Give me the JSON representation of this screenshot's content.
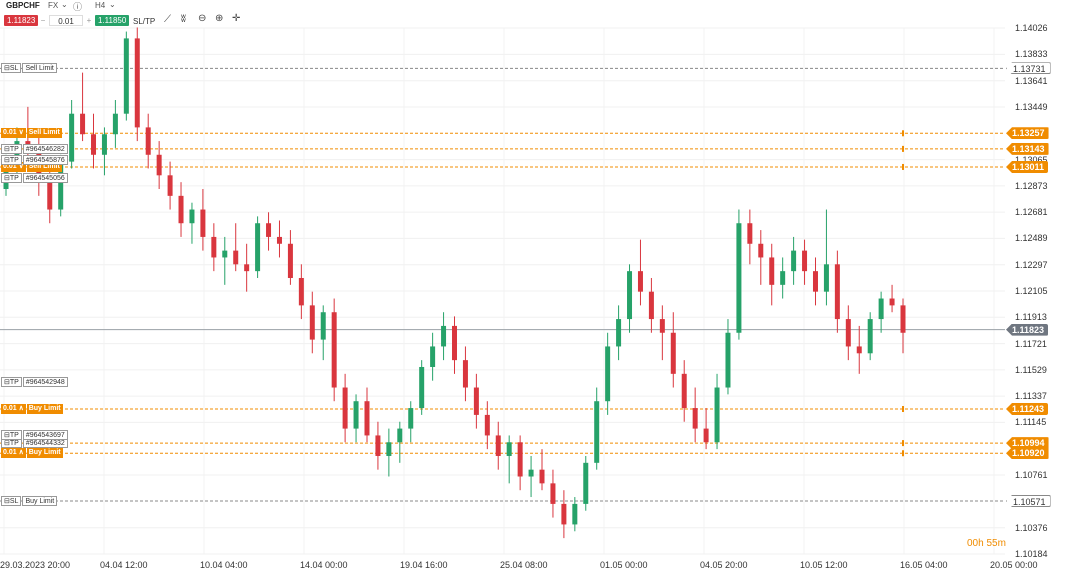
{
  "toolbar": {
    "symbol": "GBPCHF",
    "market": "FX",
    "info_icon": "info-icon",
    "timeframe": "H4",
    "sell_price": "1.11823",
    "quantity": "0.01",
    "minus": "−",
    "plus": "+",
    "buy_price": "1.11850",
    "sltp_label": "SL/TP",
    "icons": [
      "line-chart-icon",
      "indicators-icon",
      "zoom-out-icon",
      "zoom-in-icon",
      "crosshair-icon"
    ]
  },
  "price_axis": {
    "ticks": [
      "1.14026",
      "1.13833",
      "1.13641",
      "1.13449",
      "1.13065",
      "1.12873",
      "1.12681",
      "1.12489",
      "1.12297",
      "1.12105",
      "1.11913",
      "1.11721",
      "1.11529",
      "1.11337",
      "1.11145",
      "1.10761",
      "1.10376",
      "1.10184"
    ],
    "current_price": "1.11823"
  },
  "time_axis": {
    "labels": [
      "29.03.2023 20:00",
      "04.04 12:00",
      "10.04 04:00",
      "14.04 00:00",
      "19.04 16:00",
      "25.04 08:00",
      "01.05 00:00",
      "04.05 20:00",
      "10.05 12:00",
      "16.05 04:00",
      "20.05 00:00"
    ]
  },
  "order_lines": [
    {
      "kind": "sl",
      "price": "1.13731",
      "left_chips": [
        "⊟SL",
        "Sell Limit"
      ],
      "style": "gray"
    },
    {
      "kind": "order",
      "price": "1.13257",
      "left_chips": [
        "0.01 ∨",
        "Sell Limit"
      ],
      "style": "orange"
    },
    {
      "kind": "order",
      "price": "1.13143",
      "left_chips": [
        "⊟TP",
        "#964546282"
      ],
      "style": "orange"
    },
    {
      "kind": "order",
      "price": "1.13011",
      "left_chips": [
        "0.01 ∨",
        "Sell Limit"
      ],
      "style": "orange"
    },
    {
      "kind": "order",
      "price": "1.11243",
      "left_chips": [
        "0.01 ∧",
        "Buy Limit"
      ],
      "style": "orange"
    },
    {
      "kind": "order",
      "price": "1.10994",
      "left_chips": [
        "⊟TP",
        "#964544332"
      ],
      "style": "orange"
    },
    {
      "kind": "order",
      "price": "1.10920",
      "left_chips": [
        "0.01 ∧",
        "Buy Limit"
      ],
      "style": "orange"
    },
    {
      "kind": "sl",
      "price": "1.10571",
      "left_chips": [
        "⊟SL",
        "Buy Limit"
      ],
      "style": "gray"
    }
  ],
  "extra_chips": [
    {
      "price": "1.13065",
      "chips": [
        "⊟TP",
        "#964545876"
      ]
    },
    {
      "price": "1.12930",
      "chips": [
        "⊟TP",
        "#964545056"
      ]
    },
    {
      "price": "1.11440",
      "chips": [
        "⊟TP",
        "#964542948"
      ]
    },
    {
      "price": "1.11050",
      "chips": [
        "⊟TP",
        "#964543697"
      ]
    }
  ],
  "timer": {
    "hours": "00h",
    "minutes": "55m"
  },
  "colors": {
    "up": "#26a269",
    "down": "#d9363e",
    "order": "#f08c00",
    "sl": "#888888",
    "current": "#6f7680"
  },
  "chart_data": {
    "type": "candlestick",
    "x": [
      "29.03.2023 20:00",
      "04.04 12:00",
      "10.04 04:00",
      "14.04 00:00",
      "19.04 16:00",
      "25.04 08:00",
      "01.05 00:00",
      "04.05 20:00",
      "10.05 12:00",
      "16.05 04:00",
      "20.05 00:00"
    ],
    "ylim": [
      1.10184,
      1.14026
    ],
    "ohlc": [
      [
        1.1285,
        1.131,
        1.128,
        1.13
      ],
      [
        1.13,
        1.133,
        1.129,
        1.132
      ],
      [
        1.132,
        1.1345,
        1.1305,
        1.1315
      ],
      [
        1.1315,
        1.1325,
        1.128,
        1.129
      ],
      [
        1.129,
        1.13,
        1.126,
        1.127
      ],
      [
        1.127,
        1.131,
        1.1265,
        1.1305
      ],
      [
        1.1305,
        1.135,
        1.13,
        1.134
      ],
      [
        1.134,
        1.137,
        1.132,
        1.1325
      ],
      [
        1.1325,
        1.134,
        1.13,
        1.131
      ],
      [
        1.131,
        1.133,
        1.1295,
        1.1325
      ],
      [
        1.1325,
        1.135,
        1.1315,
        1.134
      ],
      [
        1.134,
        1.14,
        1.1335,
        1.1395
      ],
      [
        1.1395,
        1.1403,
        1.132,
        1.133
      ],
      [
        1.133,
        1.134,
        1.13,
        1.131
      ],
      [
        1.131,
        1.132,
        1.1285,
        1.1295
      ],
      [
        1.1295,
        1.1305,
        1.127,
        1.128
      ],
      [
        1.128,
        1.129,
        1.125,
        1.126
      ],
      [
        1.126,
        1.1275,
        1.1245,
        1.127
      ],
      [
        1.127,
        1.1285,
        1.124,
        1.125
      ],
      [
        1.125,
        1.126,
        1.1225,
        1.1235
      ],
      [
        1.1235,
        1.125,
        1.1215,
        1.124
      ],
      [
        1.124,
        1.126,
        1.1225,
        1.123
      ],
      [
        1.123,
        1.1245,
        1.121,
        1.1225
      ],
      [
        1.1225,
        1.1265,
        1.122,
        1.126
      ],
      [
        1.126,
        1.1268,
        1.124,
        1.125
      ],
      [
        1.125,
        1.1262,
        1.1235,
        1.1245
      ],
      [
        1.1245,
        1.1255,
        1.1215,
        1.122
      ],
      [
        1.122,
        1.123,
        1.119,
        1.12
      ],
      [
        1.12,
        1.121,
        1.1165,
        1.1175
      ],
      [
        1.1175,
        1.12,
        1.116,
        1.1195
      ],
      [
        1.1195,
        1.1205,
        1.113,
        1.114
      ],
      [
        1.114,
        1.115,
        1.11,
        1.111
      ],
      [
        1.111,
        1.1135,
        1.11,
        1.113
      ],
      [
        1.113,
        1.114,
        1.11,
        1.1105
      ],
      [
        1.1105,
        1.1115,
        1.108,
        1.109
      ],
      [
        1.109,
        1.111,
        1.1075,
        1.11
      ],
      [
        1.11,
        1.1115,
        1.1085,
        1.111
      ],
      [
        1.111,
        1.113,
        1.11,
        1.1125
      ],
      [
        1.1125,
        1.116,
        1.112,
        1.1155
      ],
      [
        1.1155,
        1.118,
        1.1145,
        1.117
      ],
      [
        1.117,
        1.1195,
        1.116,
        1.1185
      ],
      [
        1.1185,
        1.1192,
        1.115,
        1.116
      ],
      [
        1.116,
        1.117,
        1.113,
        1.114
      ],
      [
        1.114,
        1.115,
        1.111,
        1.112
      ],
      [
        1.112,
        1.113,
        1.1095,
        1.1105
      ],
      [
        1.1105,
        1.1115,
        1.108,
        1.109
      ],
      [
        1.109,
        1.1105,
        1.107,
        1.11
      ],
      [
        1.11,
        1.1105,
        1.1065,
        1.1075
      ],
      [
        1.1075,
        1.109,
        1.106,
        1.108
      ],
      [
        1.108,
        1.1095,
        1.1065,
        1.107
      ],
      [
        1.107,
        1.108,
        1.1045,
        1.1055
      ],
      [
        1.1055,
        1.1065,
        1.103,
        1.104
      ],
      [
        1.104,
        1.106,
        1.1035,
        1.1055
      ],
      [
        1.1055,
        1.109,
        1.105,
        1.1085
      ],
      [
        1.1085,
        1.114,
        1.108,
        1.113
      ],
      [
        1.113,
        1.118,
        1.112,
        1.117
      ],
      [
        1.117,
        1.12,
        1.116,
        1.119
      ],
      [
        1.119,
        1.123,
        1.118,
        1.1225
      ],
      [
        1.1225,
        1.1248,
        1.12,
        1.121
      ],
      [
        1.121,
        1.122,
        1.118,
        1.119
      ],
      [
        1.119,
        1.12,
        1.116,
        1.118
      ],
      [
        1.118,
        1.1195,
        1.114,
        1.115
      ],
      [
        1.115,
        1.116,
        1.1115,
        1.1125
      ],
      [
        1.1125,
        1.114,
        1.11,
        1.111
      ],
      [
        1.111,
        1.1125,
        1.1095,
        1.11
      ],
      [
        1.11,
        1.115,
        1.1095,
        1.114
      ],
      [
        1.114,
        1.119,
        1.1135,
        1.118
      ],
      [
        1.118,
        1.127,
        1.1175,
        1.126
      ],
      [
        1.126,
        1.127,
        1.123,
        1.1245
      ],
      [
        1.1245,
        1.1255,
        1.1215,
        1.1235
      ],
      [
        1.1235,
        1.1245,
        1.12,
        1.1215
      ],
      [
        1.1215,
        1.1235,
        1.1205,
        1.1225
      ],
      [
        1.1225,
        1.125,
        1.1215,
        1.124
      ],
      [
        1.124,
        1.1248,
        1.1215,
        1.1225
      ],
      [
        1.1225,
        1.1235,
        1.12,
        1.121
      ],
      [
        1.121,
        1.127,
        1.12,
        1.123
      ],
      [
        1.123,
        1.124,
        1.118,
        1.119
      ],
      [
        1.119,
        1.12,
        1.116,
        1.117
      ],
      [
        1.117,
        1.1185,
        1.115,
        1.1165
      ],
      [
        1.1165,
        1.1195,
        1.116,
        1.119
      ],
      [
        1.119,
        1.121,
        1.118,
        1.1205
      ],
      [
        1.1205,
        1.1215,
        1.1195,
        1.12
      ],
      [
        1.12,
        1.1205,
        1.1165,
        1.118
      ]
    ]
  }
}
